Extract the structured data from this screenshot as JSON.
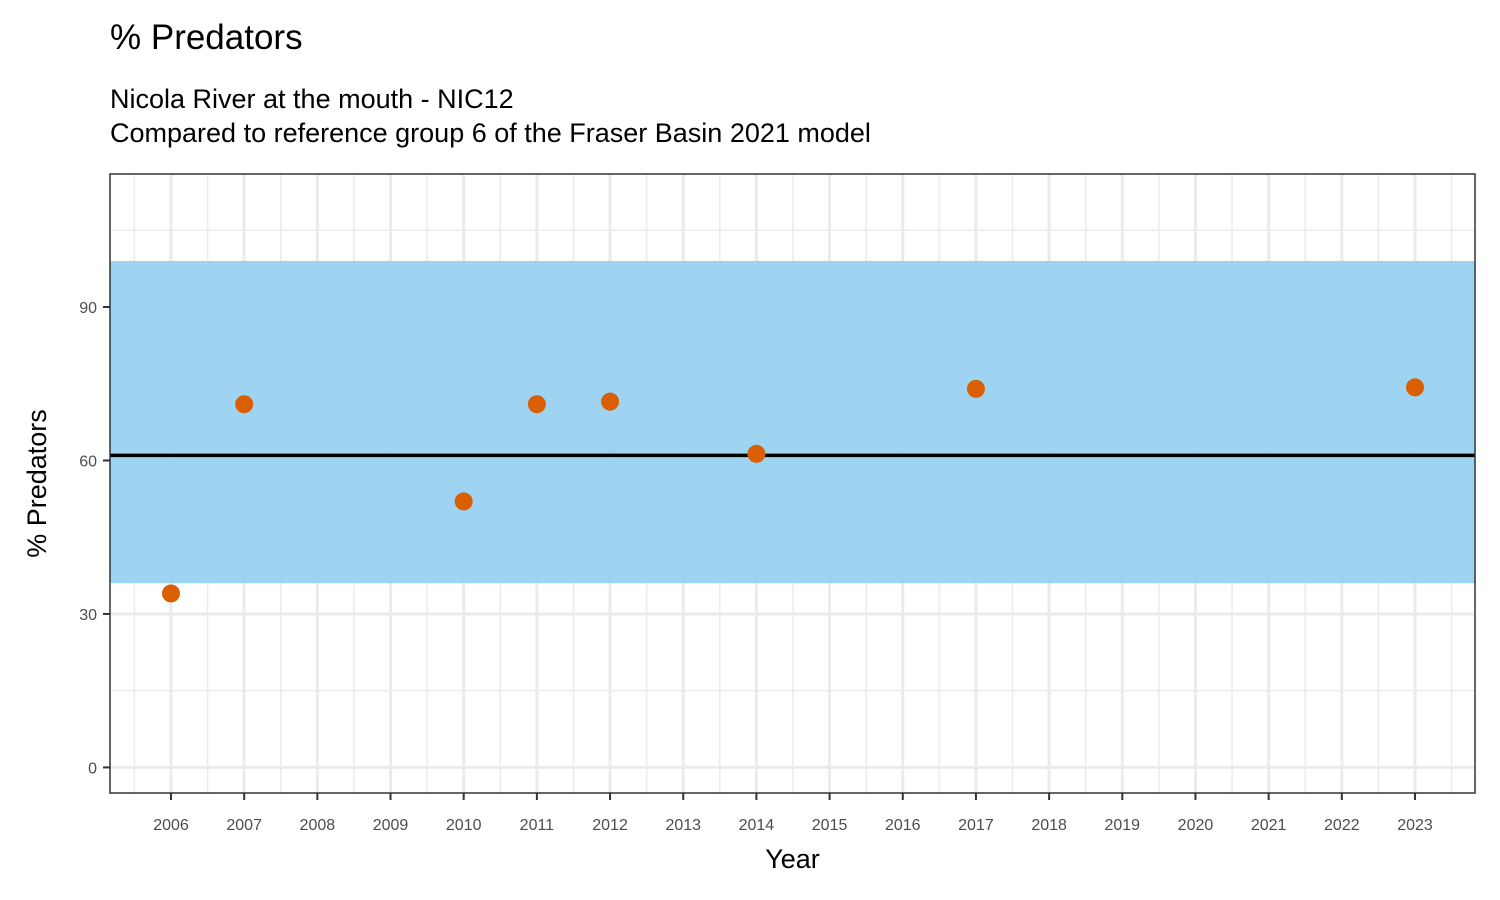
{
  "chart_data": {
    "type": "scatter",
    "title": "% Predators",
    "subtitle_lines": [
      "Nicola River at the mouth - NIC12",
      "Compared to reference group 6 of the Fraser Basin 2021 model"
    ],
    "xlabel": "Year",
    "ylabel": "% Predators",
    "x_categories": [
      "2006",
      "2007",
      "2008",
      "2009",
      "2010",
      "2011",
      "2012",
      "2013",
      "2014",
      "2015",
      "2016",
      "2017",
      "2018",
      "2019",
      "2020",
      "2021",
      "2022",
      "2023"
    ],
    "y_ticks": [
      0,
      30,
      60,
      90
    ],
    "ylim": [
      -5,
      116
    ],
    "grid": true,
    "reference_band": {
      "low": 36,
      "high": 99,
      "color": "#99d1f0"
    },
    "reference_line": {
      "value": 61,
      "color": "#000000"
    },
    "point_color": "#d95f02",
    "points": [
      {
        "x": "2006",
        "y": 34
      },
      {
        "x": "2007",
        "y": 71
      },
      {
        "x": "2010",
        "y": 52
      },
      {
        "x": "2011",
        "y": 71
      },
      {
        "x": "2012",
        "y": 71.5
      },
      {
        "x": "2014",
        "y": 61.3
      },
      {
        "x": "2017",
        "y": 74
      },
      {
        "x": "2023",
        "y": 74.3
      }
    ]
  }
}
